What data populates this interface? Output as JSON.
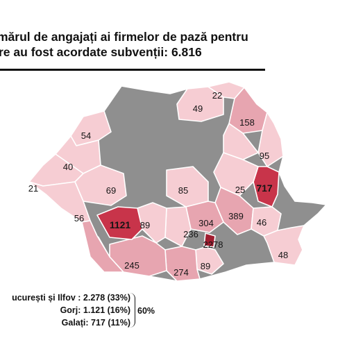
{
  "title": {
    "line1": "mărul de angajați ai firmelor de pază pentru",
    "line2": "re au fost acordate subvenții: 6.816"
  },
  "map": {
    "colors": {
      "gray": "#8f8f8f",
      "light": "#f6cdd3",
      "medium": "#e78b98",
      "dark": "#c8344a",
      "highlight": "#a01d30"
    },
    "labels": [
      "22",
      "49",
      "158",
      "54",
      "95",
      "40",
      "717",
      "21",
      "69",
      "85",
      "25",
      "389",
      "56",
      "1121",
      "89",
      "304",
      "46",
      "236",
      "2278",
      "245",
      "274",
      "89",
      "48"
    ]
  },
  "summary": {
    "row1": "ucurești și Ilfov : 2.278 (33%)",
    "row2": "Gorj: 1.121 (16%)",
    "row3": "Galați: 717 (11%)",
    "total": "60%"
  }
}
